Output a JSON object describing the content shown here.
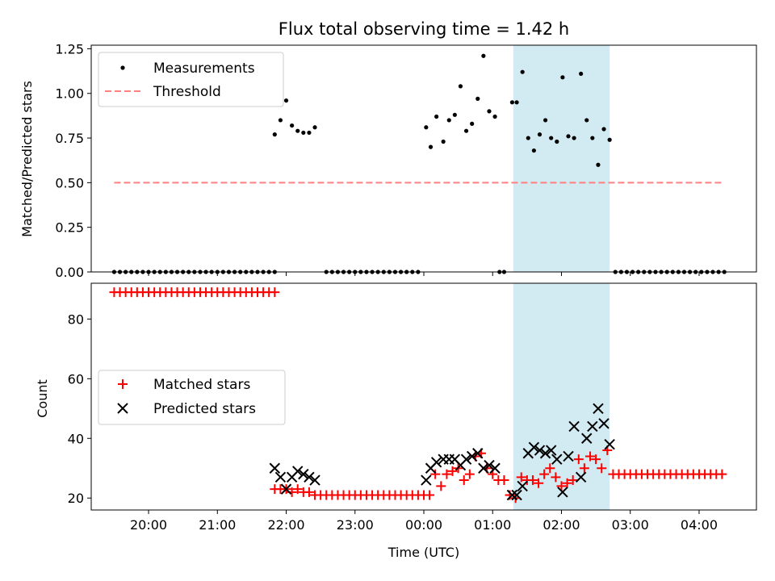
{
  "chart_data": [
    {
      "type": "scatter",
      "title": "Flux total observing time = 1.42 h",
      "xlabel": "",
      "ylabel": "Matched/Predicted stars",
      "ylim": [
        0,
        1.27
      ],
      "yticks": [
        "0.00",
        "0.25",
        "0.50",
        "0.75",
        "1.00",
        "1.25"
      ],
      "legend": {
        "placement": "top-left"
      },
      "highlight_span": {
        "start": "01:18",
        "end": "02:42",
        "color": "#add8e6"
      },
      "series": [
        {
          "name": "Measurements",
          "kind": "scatter",
          "color": "#000000",
          "points": [
            [
              "19:30",
              0
            ],
            [
              "19:35",
              0
            ],
            [
              "19:40",
              0
            ],
            [
              "19:45",
              0
            ],
            [
              "19:50",
              0
            ],
            [
              "19:55",
              0
            ],
            [
              "20:00",
              0
            ],
            [
              "20:05",
              0
            ],
            [
              "20:10",
              0
            ],
            [
              "20:15",
              0
            ],
            [
              "20:20",
              0
            ],
            [
              "20:25",
              0
            ],
            [
              "20:30",
              0
            ],
            [
              "20:35",
              0
            ],
            [
              "20:40",
              0
            ],
            [
              "20:45",
              0
            ],
            [
              "20:50",
              0
            ],
            [
              "20:55",
              0
            ],
            [
              "21:00",
              0
            ],
            [
              "21:05",
              0
            ],
            [
              "21:10",
              0
            ],
            [
              "21:15",
              0
            ],
            [
              "21:20",
              0
            ],
            [
              "21:25",
              0
            ],
            [
              "21:30",
              0
            ],
            [
              "21:35",
              0
            ],
            [
              "21:40",
              0
            ],
            [
              "21:45",
              0
            ],
            [
              "21:50",
              0
            ],
            [
              "21:50",
              0.77
            ],
            [
              "21:55",
              0.85
            ],
            [
              "22:00",
              0.96
            ],
            [
              "22:05",
              0.82
            ],
            [
              "22:10",
              0.79
            ],
            [
              "22:15",
              0.78
            ],
            [
              "22:20",
              0.78
            ],
            [
              "22:25",
              0.81
            ],
            [
              "22:35",
              0
            ],
            [
              "22:40",
              0
            ],
            [
              "22:45",
              0
            ],
            [
              "22:50",
              0
            ],
            [
              "22:55",
              0
            ],
            [
              "23:00",
              0
            ],
            [
              "23:05",
              0
            ],
            [
              "23:10",
              0
            ],
            [
              "23:15",
              0
            ],
            [
              "23:20",
              0
            ],
            [
              "23:25",
              0
            ],
            [
              "23:30",
              0
            ],
            [
              "23:35",
              0
            ],
            [
              "23:40",
              0
            ],
            [
              "23:45",
              0
            ],
            [
              "23:50",
              0
            ],
            [
              "23:55",
              0
            ],
            [
              "00:02",
              0.81
            ],
            [
              "00:06",
              0.7
            ],
            [
              "00:11",
              0.87
            ],
            [
              "00:17",
              0.73
            ],
            [
              "00:22",
              0.85
            ],
            [
              "00:27",
              0.88
            ],
            [
              "00:32",
              1.04
            ],
            [
              "00:37",
              0.79
            ],
            [
              "00:42",
              0.83
            ],
            [
              "00:47",
              0.97
            ],
            [
              "00:52",
              1.21
            ],
            [
              "00:57",
              0.9
            ],
            [
              "01:02",
              0.87
            ],
            [
              "01:06",
              0
            ],
            [
              "01:10",
              0
            ],
            [
              "01:17",
              0.95
            ],
            [
              "01:21",
              0.95
            ],
            [
              "01:26",
              1.12
            ],
            [
              "01:31",
              0.75
            ],
            [
              "01:36",
              0.68
            ],
            [
              "01:41",
              0.77
            ],
            [
              "01:46",
              0.85
            ],
            [
              "01:51",
              0.75
            ],
            [
              "01:56",
              0.73
            ],
            [
              "02:01",
              1.09
            ],
            [
              "02:06",
              0.76
            ],
            [
              "02:11",
              0.75
            ],
            [
              "02:17",
              1.11
            ],
            [
              "02:22",
              0.85
            ],
            [
              "02:27",
              0.75
            ],
            [
              "02:32",
              0.6
            ],
            [
              "02:37",
              0.8
            ],
            [
              "02:42",
              0.74
            ],
            [
              "02:47",
              0
            ],
            [
              "02:52",
              0
            ],
            [
              "02:57",
              0
            ],
            [
              "03:02",
              0
            ],
            [
              "03:07",
              0
            ],
            [
              "03:12",
              0
            ],
            [
              "03:17",
              0
            ],
            [
              "03:22",
              0
            ],
            [
              "03:27",
              0
            ],
            [
              "03:32",
              0
            ],
            [
              "03:37",
              0
            ],
            [
              "03:42",
              0
            ],
            [
              "03:47",
              0
            ],
            [
              "03:52",
              0
            ],
            [
              "03:57",
              0
            ],
            [
              "04:02",
              0
            ],
            [
              "04:07",
              0
            ],
            [
              "04:12",
              0
            ],
            [
              "04:17",
              0
            ],
            [
              "04:22",
              0
            ]
          ]
        },
        {
          "name": "Threshold",
          "kind": "dashed-line",
          "color": "#ff8080",
          "points": [
            [
              "19:30",
              0.5
            ],
            [
              "04:20",
              0.5
            ]
          ]
        }
      ]
    },
    {
      "type": "scatter",
      "title": "",
      "xlabel": "Time (UTC)",
      "ylabel": "Count",
      "ylim": [
        16,
        92
      ],
      "yticks": [
        "20",
        "40",
        "60",
        "80"
      ],
      "xticks": [
        "20:00",
        "21:00",
        "22:00",
        "23:00",
        "00:00",
        "01:00",
        "02:00",
        "03:00",
        "04:00"
      ],
      "legend": {
        "placement": "center-left"
      },
      "highlight_span": {
        "start": "01:18",
        "end": "02:42",
        "color": "#add8e6"
      },
      "series": [
        {
          "name": "Matched stars",
          "kind": "plus",
          "color": "#ff0000",
          "points": [
            [
              "19:30",
              89
            ],
            [
              "19:35",
              89
            ],
            [
              "19:40",
              89
            ],
            [
              "19:45",
              89
            ],
            [
              "19:50",
              89
            ],
            [
              "19:55",
              89
            ],
            [
              "20:00",
              89
            ],
            [
              "20:05",
              89
            ],
            [
              "20:10",
              89
            ],
            [
              "20:15",
              89
            ],
            [
              "20:20",
              89
            ],
            [
              "20:25",
              89
            ],
            [
              "20:30",
              89
            ],
            [
              "20:35",
              89
            ],
            [
              "20:40",
              89
            ],
            [
              "20:45",
              89
            ],
            [
              "20:50",
              89
            ],
            [
              "20:55",
              89
            ],
            [
              "21:00",
              89
            ],
            [
              "21:05",
              89
            ],
            [
              "21:10",
              89
            ],
            [
              "21:15",
              89
            ],
            [
              "21:20",
              89
            ],
            [
              "21:25",
              89
            ],
            [
              "21:30",
              89
            ],
            [
              "21:35",
              89
            ],
            [
              "21:40",
              89
            ],
            [
              "21:45",
              89
            ],
            [
              "21:50",
              89
            ],
            [
              "21:50",
              23
            ],
            [
              "21:55",
              23
            ],
            [
              "22:00",
              23
            ],
            [
              "22:05",
              22
            ],
            [
              "22:10",
              23
            ],
            [
              "22:15",
              22
            ],
            [
              "22:20",
              22
            ],
            [
              "22:25",
              21
            ],
            [
              "22:30",
              21
            ],
            [
              "22:35",
              21
            ],
            [
              "22:40",
              21
            ],
            [
              "22:45",
              21
            ],
            [
              "22:50",
              21
            ],
            [
              "22:55",
              21
            ],
            [
              "23:00",
              21
            ],
            [
              "23:05",
              21
            ],
            [
              "23:10",
              21
            ],
            [
              "23:15",
              21
            ],
            [
              "23:20",
              21
            ],
            [
              "23:25",
              21
            ],
            [
              "23:30",
              21
            ],
            [
              "23:35",
              21
            ],
            [
              "23:40",
              21
            ],
            [
              "23:45",
              21
            ],
            [
              "23:50",
              21
            ],
            [
              "23:55",
              21
            ],
            [
              "00:00",
              21
            ],
            [
              "00:05",
              21
            ],
            [
              "00:10",
              28
            ],
            [
              "00:15",
              24
            ],
            [
              "00:20",
              28
            ],
            [
              "00:25",
              29
            ],
            [
              "00:30",
              30
            ],
            [
              "00:35",
              26
            ],
            [
              "00:40",
              28
            ],
            [
              "00:45",
              34
            ],
            [
              "00:50",
              35
            ],
            [
              "00:55",
              30
            ],
            [
              "01:00",
              28
            ],
            [
              "01:05",
              26
            ],
            [
              "01:10",
              26
            ],
            [
              "01:15",
              21
            ],
            [
              "01:20",
              20
            ],
            [
              "01:25",
              27
            ],
            [
              "01:30",
              26
            ],
            [
              "01:35",
              26
            ],
            [
              "01:40",
              25
            ],
            [
              "01:45",
              28
            ],
            [
              "01:50",
              30
            ],
            [
              "01:55",
              27
            ],
            [
              "02:00",
              24
            ],
            [
              "02:05",
              25
            ],
            [
              "02:10",
              26
            ],
            [
              "02:15",
              33
            ],
            [
              "02:20",
              30
            ],
            [
              "02:25",
              34
            ],
            [
              "02:30",
              33
            ],
            [
              "02:35",
              30
            ],
            [
              "02:40",
              36
            ],
            [
              "02:45",
              28
            ],
            [
              "02:50",
              28
            ],
            [
              "02:55",
              28
            ],
            [
              "03:00",
              28
            ],
            [
              "03:05",
              28
            ],
            [
              "03:10",
              28
            ],
            [
              "03:15",
              28
            ],
            [
              "03:20",
              28
            ],
            [
              "03:25",
              28
            ],
            [
              "03:30",
              28
            ],
            [
              "03:35",
              28
            ],
            [
              "03:40",
              28
            ],
            [
              "03:45",
              28
            ],
            [
              "03:50",
              28
            ],
            [
              "03:55",
              28
            ],
            [
              "04:00",
              28
            ],
            [
              "04:05",
              28
            ],
            [
              "04:10",
              28
            ],
            [
              "04:15",
              28
            ],
            [
              "04:20",
              28
            ]
          ]
        },
        {
          "name": "Predicted stars",
          "kind": "x",
          "color": "#000000",
          "points": [
            [
              "21:50",
              30
            ],
            [
              "21:55",
              27
            ],
            [
              "22:00",
              23
            ],
            [
              "22:05",
              27
            ],
            [
              "22:10",
              29
            ],
            [
              "22:15",
              28
            ],
            [
              "22:20",
              27
            ],
            [
              "22:25",
              26
            ],
            [
              "00:02",
              26
            ],
            [
              "00:06",
              30
            ],
            [
              "00:11",
              32
            ],
            [
              "00:17",
              33
            ],
            [
              "00:22",
              33
            ],
            [
              "00:27",
              33
            ],
            [
              "00:32",
              31
            ],
            [
              "00:37",
              33
            ],
            [
              "00:42",
              34
            ],
            [
              "00:47",
              35
            ],
            [
              "00:52",
              30
            ],
            [
              "00:57",
              31
            ],
            [
              "01:02",
              30
            ],
            [
              "01:17",
              21
            ],
            [
              "01:21",
              21
            ],
            [
              "01:26",
              24
            ],
            [
              "01:31",
              35
            ],
            [
              "01:36",
              37
            ],
            [
              "01:41",
              36
            ],
            [
              "01:46",
              35
            ],
            [
              "01:51",
              36
            ],
            [
              "01:56",
              33
            ],
            [
              "02:01",
              22
            ],
            [
              "02:06",
              34
            ],
            [
              "02:11",
              44
            ],
            [
              "02:17",
              27
            ],
            [
              "02:22",
              40
            ],
            [
              "02:27",
              44
            ],
            [
              "02:32",
              50
            ],
            [
              "02:37",
              45
            ],
            [
              "02:42",
              38
            ]
          ]
        }
      ]
    }
  ]
}
